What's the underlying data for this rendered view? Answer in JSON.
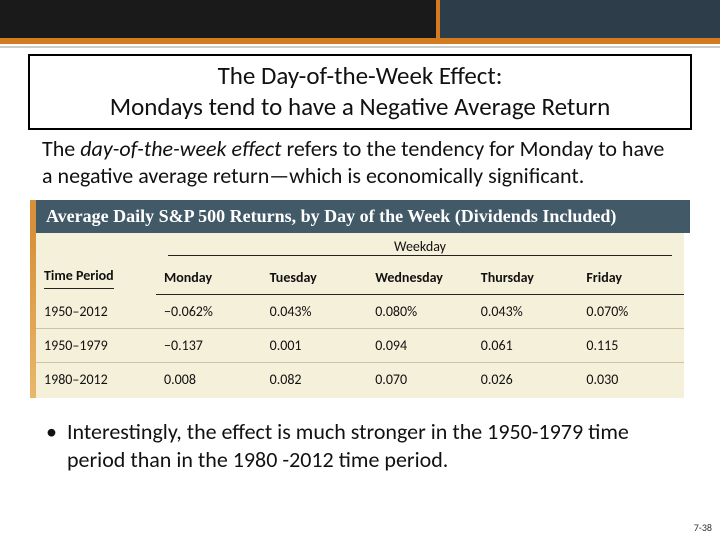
{
  "title": {
    "line1": "The Day-of-the-Week Effect:",
    "line2": "Mondays tend to have a Negative Average Return"
  },
  "definition": {
    "prefix": "The ",
    "term": "day-of-the-week effect",
    "rest": " refers to the tendency for Monday to have a negative average return—which is economically significant."
  },
  "table": {
    "type": "table",
    "title": "Average Daily S&P 500 Returns, by Day of the Week (Dividends Included)",
    "super_header": "Weekday",
    "row_label_header": "Time Period",
    "columns": [
      "Monday",
      "Tuesday",
      "Wednesday",
      "Thursday",
      "Friday"
    ],
    "rows": [
      {
        "label": "1950–2012",
        "values": [
          "−0.062%",
          "0.043%",
          "0.080%",
          "0.043%",
          "0.070%"
        ]
      },
      {
        "label": "1950–1979",
        "values": [
          "−0.137",
          "0.001",
          "0.094",
          "0.061",
          "0.115"
        ]
      },
      {
        "label": "1980–2012",
        "values": [
          "0.008",
          "0.082",
          "0.070",
          "0.026",
          "0.030"
        ]
      }
    ],
    "colors": {
      "header_bg": "#425968",
      "header_text": "#ffffff",
      "body_bg": "#f5f0da",
      "accent": "#d8903a",
      "rule": "#222222"
    }
  },
  "bullet": {
    "text": "Interestingly, the effect is much stronger in the 1950-1979 time period than in the 1980 -2012 time period."
  },
  "slide_number": "7-38"
}
